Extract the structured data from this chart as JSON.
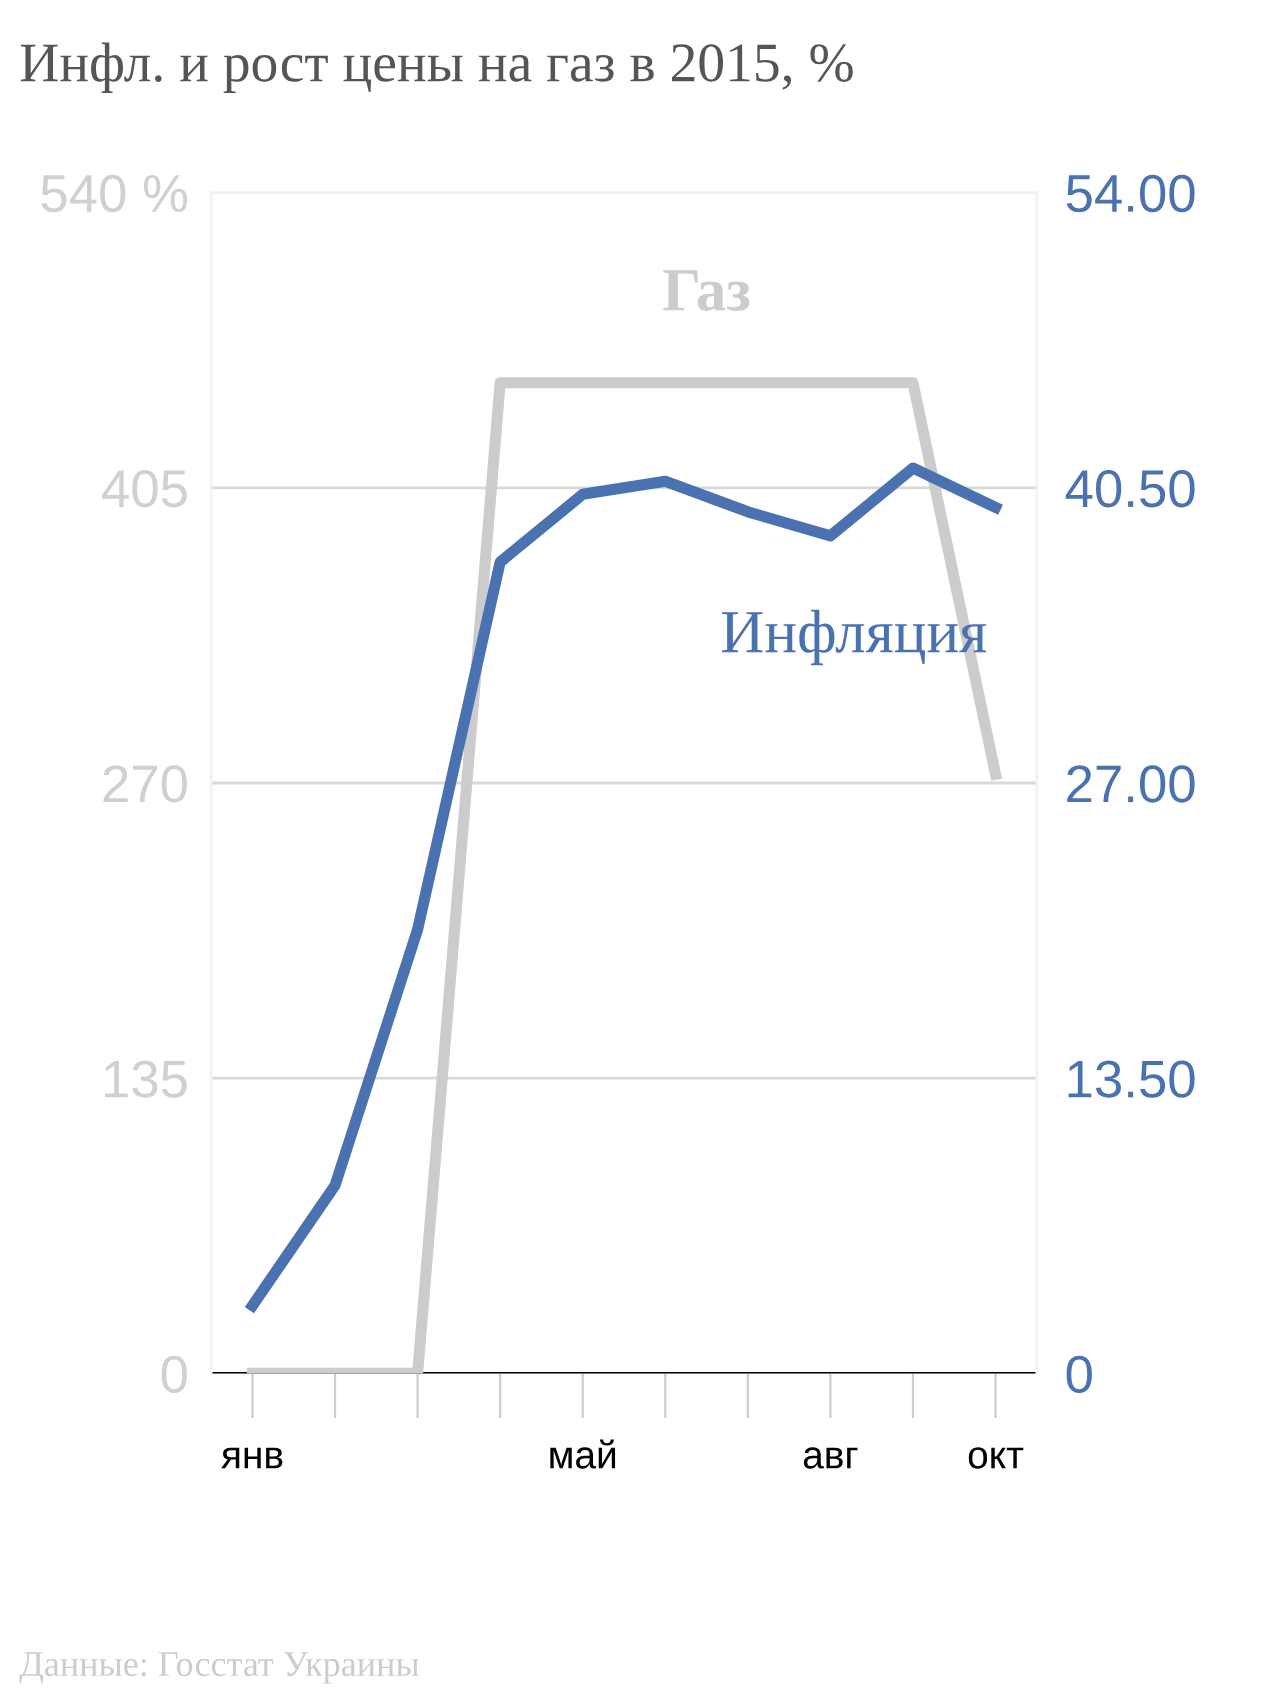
{
  "chart_data": {
    "type": "line",
    "title": "Инфл. и рост цены на газ в 2015, %",
    "categories": [
      "янв",
      null,
      null,
      null,
      "май",
      null,
      null,
      "авг",
      null,
      "окт"
    ],
    "series": [
      {
        "name": "Газ",
        "color": "#cccccc",
        "values": [
          0,
          0,
          0,
          453,
          453,
          453,
          453,
          453,
          453,
          274
        ]
      },
      {
        "name": "Инфляция",
        "color": "#4a72b0",
        "axis": "y2",
        "values": [
          3.1,
          8.6,
          20.3,
          37.1,
          40.2,
          40.8,
          39.4,
          38.3,
          41.4,
          39.6
        ]
      }
    ],
    "ylim": [
      0,
      540
    ],
    "yticks": [
      0,
      135,
      270,
      405,
      {
        "value": 540,
        "label": "540 %"
      }
    ],
    "y2lim": [
      0,
      54
    ],
    "y2ticks": [
      0,
      {
        "value": 13.5,
        "label": "13.50"
      },
      {
        "value": 27,
        "label": "27.00"
      },
      {
        "value": 40.5,
        "label": "40.50"
      },
      {
        "value": 54,
        "label": "54.00"
      }
    ],
    "grid": "y",
    "marker": "none",
    "line_style": "solid",
    "legend": false,
    "annotations": [
      "Данные: Госстат Украины"
    ]
  }
}
